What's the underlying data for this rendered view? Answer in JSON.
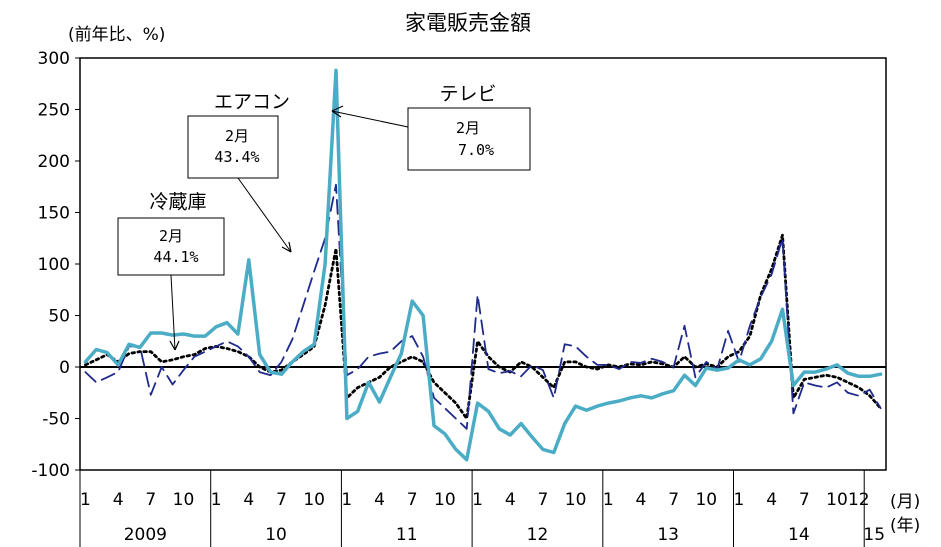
{
  "chart_data": {
    "type": "line",
    "title": "家電販売金額",
    "ylabel": "(前年比、%)",
    "ylim": [
      -100,
      300
    ],
    "yticks": [
      300,
      250,
      200,
      150,
      100,
      50,
      0,
      -50,
      -100
    ],
    "x_month_ticks": [
      "1",
      "4",
      "7",
      "10",
      "1",
      "4",
      "7",
      "10",
      "1",
      "4",
      "7",
      "10",
      "1",
      "4",
      "7",
      "10",
      "1",
      "4",
      "7",
      "10",
      "1",
      "4",
      "7",
      "10",
      "12"
    ],
    "x_month_tick_index": [
      0,
      3,
      6,
      9,
      12,
      15,
      18,
      21,
      24,
      27,
      30,
      33,
      36,
      39,
      42,
      45,
      48,
      51,
      54,
      57,
      60,
      63,
      66,
      69,
      71
    ],
    "years": [
      "2009",
      "10",
      "11",
      "12",
      "13",
      "14",
      "15"
    ],
    "year_start_index": [
      0,
      12,
      24,
      36,
      48,
      60,
      72
    ],
    "month_unit": "(月)",
    "year_unit": "(年)",
    "n_months": 74,
    "series": [
      {
        "name": "テレビ",
        "style": "solid",
        "color": "#4bacc6",
        "values": [
          5,
          17,
          14,
          2,
          22,
          19,
          33,
          33,
          31,
          32,
          30,
          30,
          39,
          43,
          32,
          104,
          12,
          -5,
          -7,
          5,
          15,
          22,
          100,
          288,
          -50,
          -43,
          -15,
          -34,
          -10,
          13,
          64,
          50,
          -57,
          -65,
          -80,
          -90,
          -35,
          -43,
          -60,
          -66,
          -55,
          -68,
          -80,
          -83,
          -55,
          -38,
          -42,
          -38,
          -35,
          -33,
          -30,
          -28,
          -30,
          -26,
          -23,
          -8,
          -18,
          -1,
          -3,
          -1,
          7,
          2,
          8,
          25,
          56,
          -18,
          -5,
          -5,
          -2,
          2,
          -6,
          -9,
          -9,
          -7
        ]
      },
      {
        "name": "エアコン",
        "style": "dash",
        "color": "#1f2a8c",
        "values": [
          -5,
          -15,
          -10,
          -5,
          20,
          20,
          -27,
          0,
          -17,
          -3,
          10,
          15,
          20,
          25,
          20,
          10,
          -5,
          -8,
          5,
          27,
          60,
          93,
          125,
          177,
          -8,
          -2,
          10,
          13,
          15,
          25,
          30,
          10,
          -30,
          -40,
          -50,
          -60,
          70,
          -2,
          -6,
          -4,
          -9,
          2,
          -3,
          -30,
          22,
          20,
          10,
          2,
          2,
          -2,
          5,
          4,
          8,
          5,
          0,
          40,
          -10,
          5,
          -2,
          35,
          5,
          40,
          68,
          90,
          125,
          -45,
          -15,
          -18,
          -20,
          -15,
          -25,
          -28,
          -22,
          -40
        ]
      },
      {
        "name": "冷蔵庫",
        "style": "dot",
        "color": "#000000",
        "values": [
          2,
          7,
          12,
          5,
          13,
          15,
          15,
          5,
          7,
          10,
          12,
          18,
          20,
          18,
          15,
          10,
          0,
          -5,
          -3,
          5,
          12,
          20,
          60,
          115,
          -30,
          -20,
          -15,
          -10,
          0,
          5,
          10,
          5,
          -15,
          -25,
          -35,
          -50,
          25,
          10,
          0,
          -5,
          5,
          0,
          -10,
          -20,
          5,
          5,
          0,
          -2,
          2,
          0,
          3,
          2,
          5,
          3,
          0,
          10,
          0,
          3,
          0,
          10,
          15,
          30,
          70,
          95,
          128,
          -30,
          -12,
          -10,
          -8,
          -10,
          -15,
          -20,
          -28,
          -40
        ]
      }
    ],
    "annotations": [
      {
        "title": "エアコン",
        "month": "2月",
        "value": "43.4%"
      },
      {
        "title": "テレビ",
        "month": "2月",
        "value": "7.0%"
      },
      {
        "title": "冷蔵庫",
        "month": "2月",
        "value": "44.1%"
      }
    ]
  }
}
